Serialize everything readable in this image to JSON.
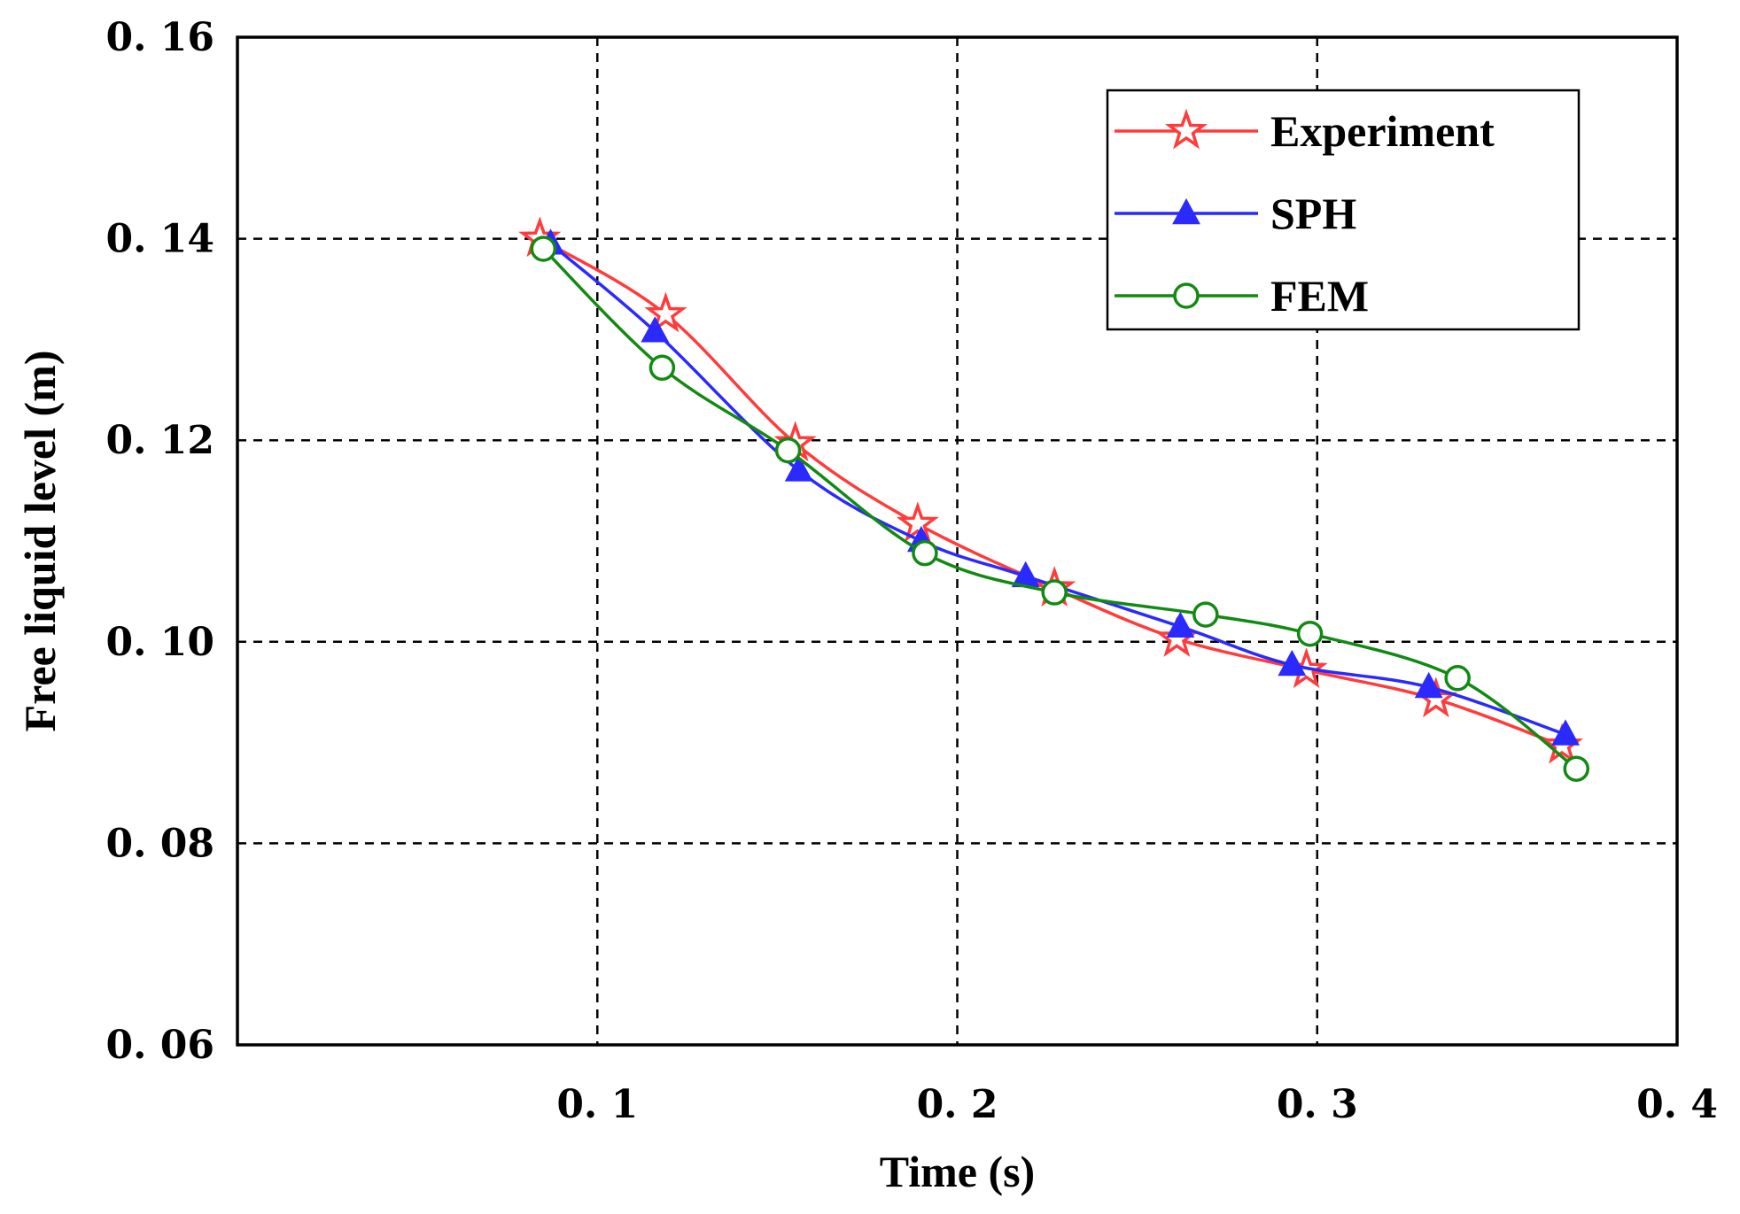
{
  "chart_data": {
    "type": "line",
    "title": "",
    "xlabel": "Time (s)",
    "ylabel": "Free liquid level (m)",
    "xlim": [
      0.0,
      0.4
    ],
    "ylim": [
      0.06,
      0.16
    ],
    "xticks": [
      0.1,
      0.2,
      0.3,
      0.4
    ],
    "xtick_labels": [
      "0. 1",
      "0. 2",
      "0. 3",
      "0. 4"
    ],
    "yticks": [
      0.06,
      0.08,
      0.1,
      0.12,
      0.14,
      0.16
    ],
    "ytick_labels": [
      "0. 06",
      "0. 08",
      "0. 10",
      "0. 12",
      "0. 14",
      "0. 16"
    ],
    "grid": true,
    "legend_position": "top-right",
    "series": [
      {
        "name": "Experiment",
        "color": "#ff3b3b",
        "marker": "star-open",
        "x": [
          0.084,
          0.119,
          0.155,
          0.189,
          0.227,
          0.261,
          0.297,
          0.333,
          0.368
        ],
        "y": [
          0.14,
          0.1325,
          0.1197,
          0.1117,
          0.1053,
          0.1003,
          0.0972,
          0.0943,
          0.0897
        ]
      },
      {
        "name": "SPH",
        "color": "#2a2aff",
        "marker": "triangle-filled",
        "x": [
          0.087,
          0.116,
          0.156,
          0.19,
          0.219,
          0.262,
          0.293,
          0.331,
          0.369
        ],
        "y": [
          0.1395,
          0.1308,
          0.117,
          0.11,
          0.1065,
          0.1015,
          0.0977,
          0.0955,
          0.0908
        ]
      },
      {
        "name": "FEM",
        "color": "#128a12",
        "marker": "circle-open",
        "x": [
          0.085,
          0.118,
          0.153,
          0.191,
          0.227,
          0.269,
          0.298,
          0.339,
          0.372
        ],
        "y": [
          0.139,
          0.1272,
          0.119,
          0.1088,
          0.1049,
          0.1027,
          0.1008,
          0.0964,
          0.0874
        ]
      }
    ]
  }
}
